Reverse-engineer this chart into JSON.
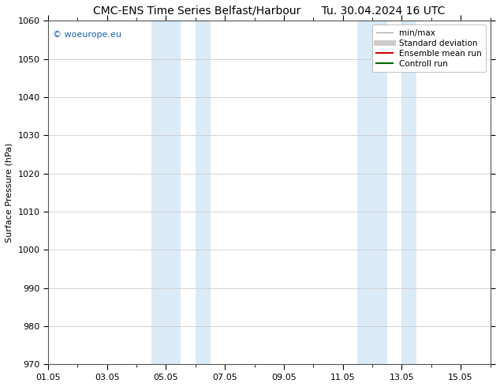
{
  "title_left": "CMC-ENS Time Series Belfast/Harbour",
  "title_right": "Tu. 30.04.2024 16 UTC",
  "ylabel": "Surface Pressure (hPa)",
  "ylim": [
    970,
    1060
  ],
  "yticks": [
    970,
    980,
    990,
    1000,
    1010,
    1020,
    1030,
    1040,
    1050,
    1060
  ],
  "xtick_labels": [
    "01.05",
    "03.05",
    "05.05",
    "07.05",
    "09.05",
    "11.05",
    "13.05",
    "15.05"
  ],
  "xtick_positions": [
    0,
    2,
    4,
    6,
    8,
    10,
    12,
    14
  ],
  "x_min": 0,
  "x_max": 15,
  "shaded_bands": [
    {
      "x_start": 3.5,
      "x_end": 4.5,
      "color": "#daeaf7"
    },
    {
      "x_start": 5.0,
      "x_end": 5.5,
      "color": "#daeaf7"
    },
    {
      "x_start": 10.5,
      "x_end": 11.5,
      "color": "#daeaf7"
    },
    {
      "x_start": 12.0,
      "x_end": 12.5,
      "color": "#daeaf7"
    }
  ],
  "watermark_text": "© woeurope.eu",
  "watermark_color": "#1a5fb4",
  "legend_entries": [
    {
      "label": "min/max",
      "color": "#aaaaaa",
      "lw": 1.0,
      "style": "solid"
    },
    {
      "label": "Standard deviation",
      "color": "#cccccc",
      "lw": 5,
      "style": "solid"
    },
    {
      "label": "Ensemble mean run",
      "color": "#cc0000",
      "lw": 1.5,
      "style": "solid"
    },
    {
      "label": "Controll run",
      "color": "#006600",
      "lw": 1.5,
      "style": "solid"
    }
  ],
  "bg_color": "#ffffff",
  "grid_color": "#cccccc",
  "font_size_title": 10,
  "font_size_axis": 8,
  "font_size_legend": 7.5,
  "font_size_watermark": 8
}
